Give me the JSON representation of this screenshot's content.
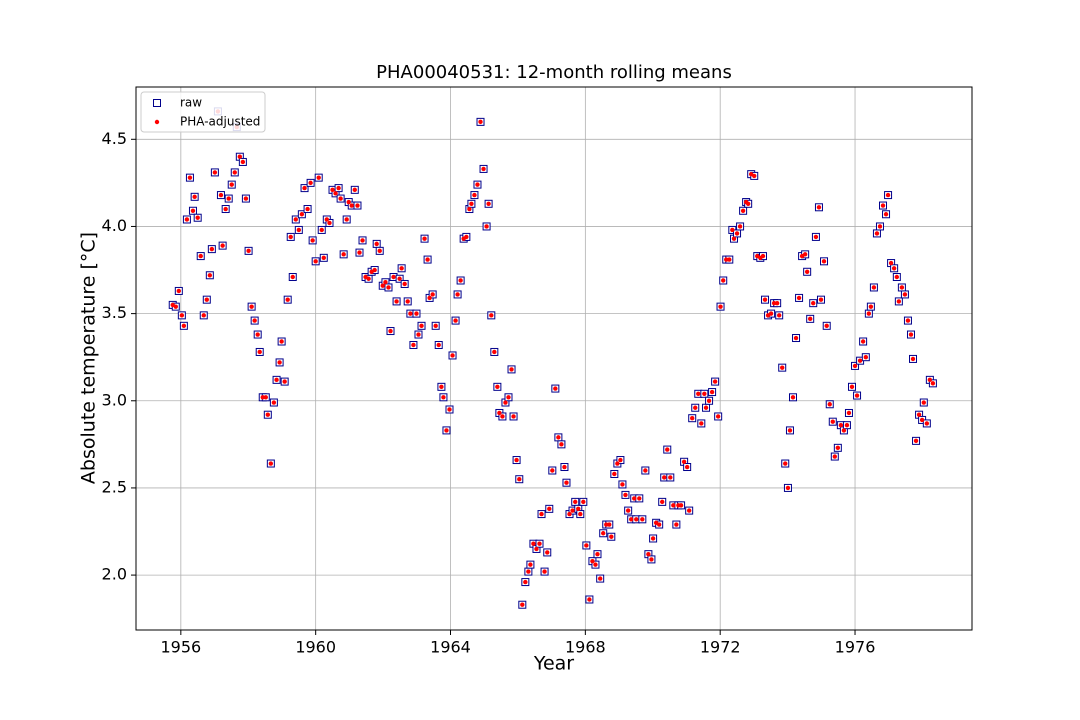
{
  "chart_data": {
    "type": "scatter",
    "title": "PHA00040531: 12-month rolling means",
    "x_label": "Year",
    "y_label": "Absolute temperature [°C]",
    "xlim": [
      1954.67,
      1979.47
    ],
    "ylim": [
      1.685,
      4.8
    ],
    "xticks": [
      1956,
      1960,
      1964,
      1968,
      1972,
      1976
    ],
    "yticks": [
      {
        "value": 2,
        "label": "2.0"
      },
      2.5,
      {
        "value": 3,
        "label": "3.0"
      },
      3.5,
      {
        "value": 4,
        "label": "4.0"
      },
      4.5
    ],
    "grid": true,
    "legend": "upper left",
    "x": [
      1955.76,
      1955.85,
      1955.94,
      1956.03,
      1956.09,
      1956.18,
      1956.27,
      1956.36,
      1956.41,
      1956.5,
      1956.59,
      1956.68,
      1956.77,
      1956.86,
      1956.92,
      1957.01,
      1957.1,
      1957.19,
      1957.24,
      1957.33,
      1957.42,
      1957.51,
      1957.6,
      1957.66,
      1957.75,
      1957.84,
      1957.93,
      1958.01,
      1958.1,
      1958.19,
      1958.28,
      1958.34,
      1958.43,
      1958.52,
      1958.58,
      1958.67,
      1958.76,
      1958.84,
      1958.93,
      1958.99,
      1959.08,
      1959.17,
      1959.26,
      1959.32,
      1959.41,
      1959.5,
      1959.59,
      1959.67,
      1959.76,
      1959.85,
      1959.91,
      1960,
      1960.09,
      1960.18,
      1960.24,
      1960.33,
      1960.41,
      1960.5,
      1960.59,
      1960.68,
      1960.74,
      1960.83,
      1960.92,
      1960.98,
      1961.07,
      1961.16,
      1961.24,
      1961.3,
      1961.39,
      1961.48,
      1961.57,
      1961.66,
      1961.75,
      1961.81,
      1961.9,
      1961.99,
      1962.07,
      1962.16,
      1962.22,
      1962.31,
      1962.4,
      1962.49,
      1962.55,
      1962.64,
      1962.73,
      1962.81,
      1962.9,
      1962.99,
      1963.05,
      1963.14,
      1963.23,
      1963.32,
      1963.38,
      1963.47,
      1963.56,
      1963.65,
      1963.73,
      1963.79,
      1963.88,
      1963.97,
      1964.06,
      1964.15,
      1964.21,
      1964.3,
      1964.39,
      1964.47,
      1964.56,
      1964.62,
      1964.71,
      1964.8,
      1964.89,
      1964.98,
      1965.07,
      1965.13,
      1965.21,
      1965.3,
      1965.39,
      1965.45,
      1965.54,
      1965.63,
      1965.72,
      1965.81,
      1965.87,
      1965.96,
      1966.04,
      1966.13,
      1966.22,
      1966.31,
      1966.37,
      1966.46,
      1966.55,
      1966.64,
      1966.7,
      1966.79,
      1966.87,
      1966.93,
      1967.02,
      1967.11,
      1967.2,
      1967.29,
      1967.38,
      1967.44,
      1967.53,
      1967.62,
      1967.7,
      1967.79,
      1967.85,
      1967.94,
      1968.03,
      1968.12,
      1968.21,
      1968.3,
      1968.36,
      1968.44,
      1968.53,
      1968.62,
      1968.71,
      1968.77,
      1968.86,
      1968.95,
      1969.04,
      1969.1,
      1969.19,
      1969.27,
      1969.36,
      1969.45,
      1969.51,
      1969.6,
      1969.69,
      1969.78,
      1969.87,
      1969.96,
      1970.01,
      1970.1,
      1970.19,
      1970.28,
      1970.34,
      1970.43,
      1970.52,
      1970.61,
      1970.7,
      1970.76,
      1970.84,
      1970.93,
      1971.02,
      1971.08,
      1971.17,
      1971.26,
      1971.35,
      1971.44,
      1971.53,
      1971.58,
      1971.67,
      1971.76,
      1971.85,
      1971.94,
      1972.01,
      1972.09,
      1972.18,
      1972.27,
      1972.36,
      1972.41,
      1972.5,
      1972.59,
      1972.68,
      1972.77,
      1972.83,
      1972.92,
      1973.01,
      1973.1,
      1973.19,
      1973.27,
      1973.33,
      1973.42,
      1973.51,
      1973.6,
      1973.69,
      1973.75,
      1973.84,
      1973.93,
      1974.01,
      1974.07,
      1974.16,
      1974.25,
      1974.34,
      1974.43,
      1974.52,
      1974.58,
      1974.67,
      1974.76,
      1974.84,
      1974.93,
      1974.99,
      1975.08,
      1975.16,
      1975.25,
      1975.34,
      1975.4,
      1975.49,
      1975.58,
      1975.67,
      1975.76,
      1975.82,
      1975.91,
      1976,
      1976.06,
      1976.15,
      1976.24,
      1976.32,
      1976.41,
      1976.47,
      1976.56,
      1976.65,
      1976.74,
      1976.83,
      1976.92,
      1976.98,
      1977.07,
      1977.16,
      1977.24,
      1977.3,
      1977.39,
      1977.48,
      1977.57,
      1977.66,
      1977.72,
      1977.81,
      1977.9,
      1977.99,
      1978.04,
      1978.13,
      1978.22,
      1978.31
    ],
    "series": [
      {
        "name": "raw",
        "color": "#00008b",
        "marker": "square",
        "values": [
          3.55,
          3.54,
          3.63,
          3.49,
          3.43,
          4.04,
          4.28,
          4.09,
          4.17,
          4.05,
          3.83,
          3.49,
          3.58,
          3.72,
          3.87,
          4.31,
          4.66,
          4.18,
          3.89,
          4.1,
          4.16,
          4.24,
          4.31,
          4.57,
          4.4,
          4.37,
          4.16,
          3.86,
          3.54,
          3.46,
          3.38,
          3.28,
          3.02,
          3.02,
          2.92,
          2.64,
          2.99,
          3.12,
          3.22,
          3.34,
          3.11,
          3.58,
          3.94,
          3.71,
          4.04,
          3.98,
          4.07,
          4.22,
          4.1,
          4.25,
          3.92,
          3.8,
          4.28,
          3.98,
          3.82,
          4.04,
          4.02,
          4.21,
          4.19,
          4.22,
          4.16,
          3.84,
          4.04,
          4.14,
          4.12,
          4.21,
          4.12,
          3.85,
          3.92,
          3.71,
          3.7,
          3.74,
          3.75,
          3.9,
          3.86,
          3.66,
          3.68,
          3.65,
          3.4,
          3.71,
          3.57,
          3.7,
          3.76,
          3.67,
          3.57,
          3.5,
          3.32,
          3.5,
          3.38,
          3.43,
          3.93,
          3.81,
          3.59,
          3.61,
          3.43,
          3.32,
          3.08,
          3.02,
          2.83,
          2.95,
          3.26,
          3.46,
          3.61,
          3.69,
          3.93,
          3.94,
          4.1,
          4.13,
          4.18,
          4.24,
          4.6,
          4.33,
          4.0,
          4.13,
          3.49,
          3.28,
          3.08,
          2.93,
          2.91,
          2.99,
          3.02,
          3.18,
          2.91,
          2.66,
          2.55,
          1.83,
          1.96,
          2.02,
          2.06,
          2.18,
          2.15,
          2.18,
          2.35,
          2.02,
          2.13,
          2.38,
          2.6,
          3.07,
          2.79,
          2.75,
          2.62,
          2.53,
          2.35,
          2.37,
          2.42,
          2.38,
          2.35,
          2.42,
          2.17,
          1.86,
          2.08,
          2.06,
          2.12,
          1.98,
          2.24,
          2.29,
          2.29,
          2.22,
          2.58,
          2.64,
          2.66,
          2.52,
          2.46,
          2.37,
          2.32,
          2.44,
          2.32,
          2.44,
          2.32,
          2.6,
          2.12,
          2.09,
          2.21,
          2.3,
          2.29,
          2.42,
          2.56,
          2.72,
          2.56,
          2.4,
          2.29,
          2.4,
          2.4,
          2.65,
          2.62,
          2.37,
          2.9,
          2.96,
          3.04,
          2.87,
          3.04,
          2.96,
          3.0,
          3.05,
          3.11,
          2.91,
          3.54,
          3.69,
          3.81,
          3.81,
          3.98,
          3.93,
          3.96,
          4.0,
          4.09,
          4.14,
          4.13,
          4.3,
          4.29,
          3.83,
          3.82,
          3.83,
          3.58,
          3.49,
          3.5,
          3.56,
          3.56,
          3.49,
          3.19,
          2.64,
          2.5,
          2.83,
          3.02,
          3.36,
          3.59,
          3.83,
          3.84,
          3.74,
          3.47,
          3.56,
          3.94,
          4.11,
          3.58,
          3.8,
          3.43,
          2.98,
          2.88,
          2.68,
          2.73,
          2.86,
          2.83,
          2.86,
          2.93,
          3.08,
          3.2,
          3.03,
          3.23,
          3.34,
          3.25,
          3.5,
          3.54,
          3.65,
          3.96,
          4.0,
          4.12,
          4.07,
          4.18,
          3.79,
          3.76,
          3.71,
          3.57,
          3.65,
          3.61,
          3.46,
          3.38,
          3.24,
          2.77,
          2.92,
          2.89,
          2.99,
          2.87,
          3.12,
          3.1
        ]
      },
      {
        "name": "PHA-adjusted",
        "color": "#ff0000",
        "marker": "dot",
        "values": [
          3.55,
          3.54,
          3.63,
          3.49,
          3.43,
          4.04,
          4.28,
          4.09,
          4.17,
          4.05,
          3.83,
          3.49,
          3.58,
          3.72,
          3.87,
          4.31,
          4.66,
          4.18,
          3.89,
          4.1,
          4.16,
          4.24,
          4.31,
          4.57,
          4.4,
          4.37,
          4.16,
          3.86,
          3.54,
          3.46,
          3.38,
          3.28,
          3.02,
          3.02,
          2.92,
          2.64,
          2.99,
          3.12,
          3.22,
          3.34,
          3.11,
          3.58,
          3.94,
          3.71,
          4.04,
          3.98,
          4.07,
          4.22,
          4.1,
          4.25,
          3.92,
          3.8,
          4.28,
          3.98,
          3.82,
          4.04,
          4.02,
          4.21,
          4.19,
          4.22,
          4.16,
          3.84,
          4.04,
          4.14,
          4.12,
          4.21,
          4.12,
          3.85,
          3.92,
          3.71,
          3.7,
          3.74,
          3.75,
          3.9,
          3.86,
          3.66,
          3.68,
          3.65,
          3.4,
          3.71,
          3.57,
          3.7,
          3.76,
          3.67,
          3.57,
          3.5,
          3.32,
          3.5,
          3.38,
          3.43,
          3.93,
          3.81,
          3.59,
          3.61,
          3.43,
          3.32,
          3.08,
          3.02,
          2.83,
          2.95,
          3.26,
          3.46,
          3.61,
          3.69,
          3.93,
          3.94,
          4.1,
          4.13,
          4.18,
          4.24,
          4.6,
          4.33,
          4.0,
          4.13,
          3.49,
          3.28,
          3.08,
          2.93,
          2.91,
          2.99,
          3.02,
          3.18,
          2.91,
          2.66,
          2.55,
          1.83,
          1.96,
          2.02,
          2.06,
          2.18,
          2.15,
          2.18,
          2.35,
          2.02,
          2.13,
          2.38,
          2.6,
          3.07,
          2.79,
          2.75,
          2.62,
          2.53,
          2.35,
          2.37,
          2.42,
          2.38,
          2.35,
          2.42,
          2.17,
          1.86,
          2.08,
          2.06,
          2.12,
          1.98,
          2.24,
          2.29,
          2.29,
          2.22,
          2.58,
          2.64,
          2.66,
          2.52,
          2.46,
          2.37,
          2.32,
          2.44,
          2.32,
          2.44,
          2.32,
          2.6,
          2.12,
          2.09,
          2.21,
          2.3,
          2.29,
          2.42,
          2.56,
          2.72,
          2.56,
          2.4,
          2.29,
          2.4,
          2.4,
          2.65,
          2.62,
          2.37,
          2.9,
          2.96,
          3.04,
          2.87,
          3.04,
          2.96,
          3.0,
          3.05,
          3.11,
          2.91,
          3.54,
          3.69,
          3.81,
          3.81,
          3.98,
          3.93,
          3.96,
          4.0,
          4.09,
          4.14,
          4.13,
          4.3,
          4.29,
          3.83,
          3.82,
          3.83,
          3.58,
          3.49,
          3.5,
          3.56,
          3.56,
          3.49,
          3.19,
          2.64,
          2.5,
          2.83,
          3.02,
          3.36,
          3.59,
          3.83,
          3.84,
          3.74,
          3.47,
          3.56,
          3.94,
          4.11,
          3.58,
          3.8,
          3.43,
          2.98,
          2.88,
          2.68,
          2.73,
          2.86,
          2.83,
          2.86,
          2.93,
          3.08,
          3.2,
          3.03,
          3.23,
          3.34,
          3.25,
          3.5,
          3.54,
          3.65,
          3.96,
          4.0,
          4.12,
          4.07,
          4.18,
          3.79,
          3.76,
          3.71,
          3.57,
          3.65,
          3.61,
          3.46,
          3.38,
          3.24,
          2.77,
          2.92,
          2.89,
          2.99,
          2.87,
          3.12,
          3.1
        ]
      }
    ]
  }
}
